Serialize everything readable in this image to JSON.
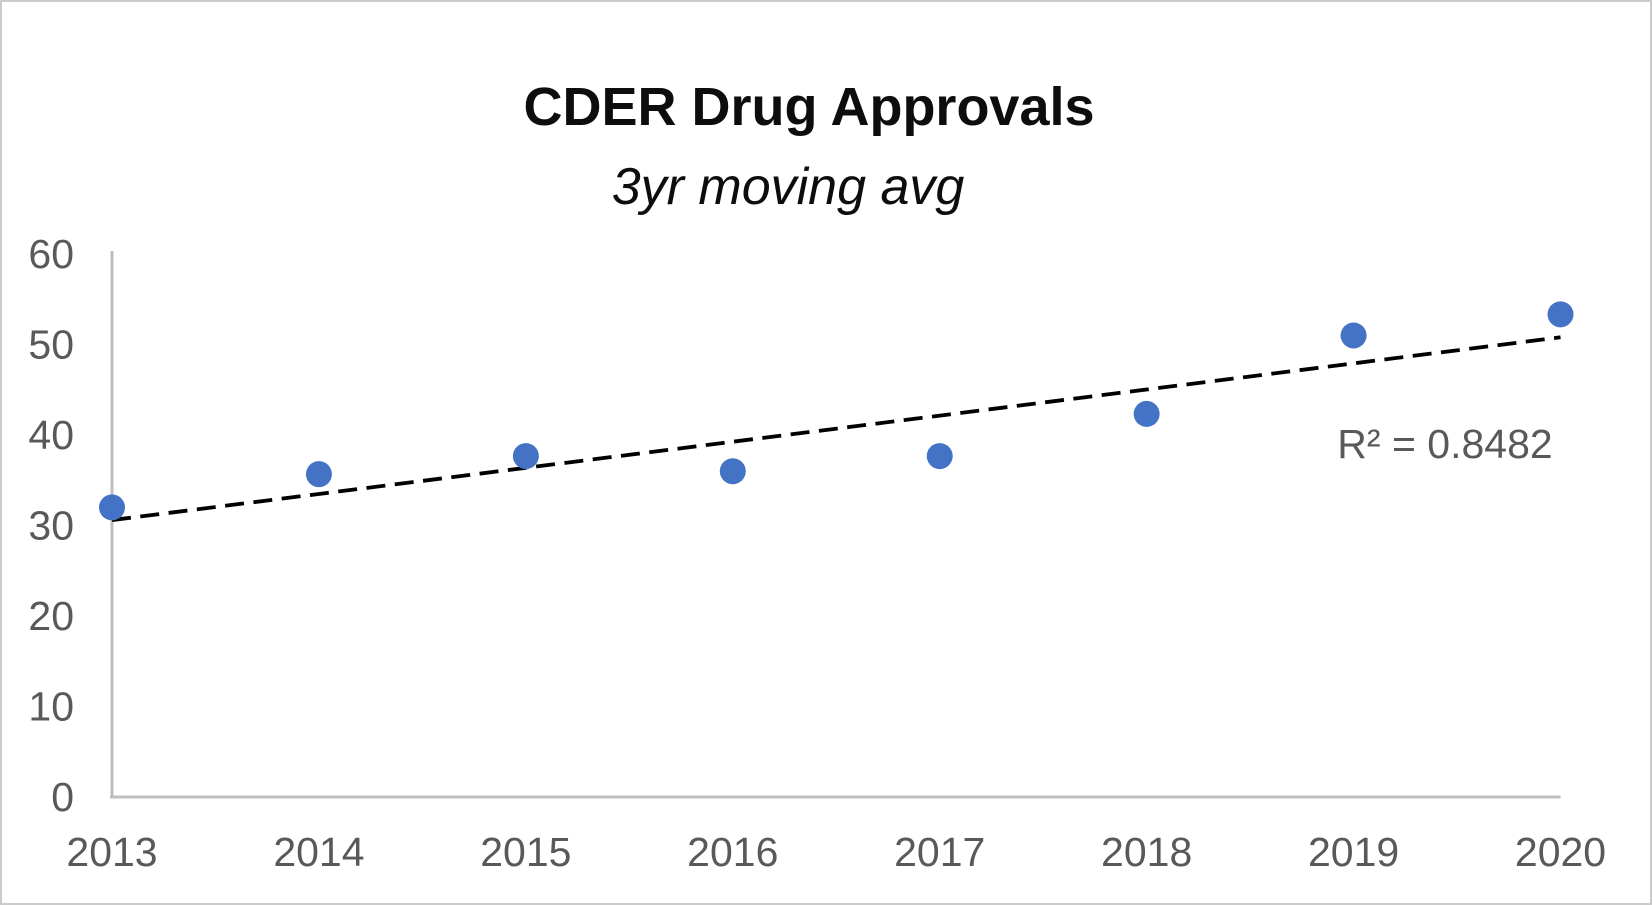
{
  "chart_data": {
    "type": "scatter",
    "title": "CDER Drug Approvals",
    "subtitle": "3yr moving avg",
    "categories": [
      "2013",
      "2014",
      "2015",
      "2016",
      "2017",
      "2018",
      "2019",
      "2020"
    ],
    "values": [
      32,
      35.67,
      37.67,
      36,
      37.67,
      42.33,
      51,
      53.33
    ],
    "xlabel": "",
    "ylabel": "",
    "ylim": [
      0,
      60
    ],
    "yticks": [
      0,
      10,
      20,
      30,
      40,
      50,
      60
    ],
    "grid": "off",
    "legend": "none",
    "trendline": {
      "style": "dashed",
      "start_x": "2013",
      "start_y": 30.6,
      "end_x": "2020",
      "end_y": 50.8,
      "slope_per_year": 2.88
    },
    "annotation": {
      "label": "R² = 0.8482"
    },
    "colors": {
      "point": "#4472C4",
      "trendline": "#000000",
      "axis_line": "#bfbfbf",
      "tick_label": "#595959",
      "annotation": "#595959",
      "title": "#0d0d0d"
    }
  }
}
